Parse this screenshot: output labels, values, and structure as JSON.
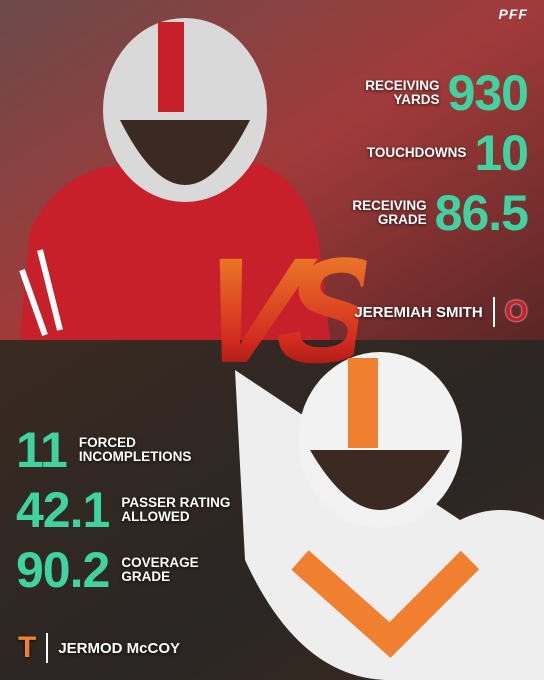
{
  "brand": "PFF",
  "top": {
    "stats": [
      {
        "value": "930",
        "label": [
          "RECEIVING",
          "YARDS"
        ]
      },
      {
        "value": "10",
        "label": [
          "TOUCHDOWNS"
        ]
      },
      {
        "value": "86.5",
        "label": [
          "RECEIVING",
          "GRADE"
        ]
      }
    ],
    "player": "JEREMIAH SMITH",
    "logo": "O"
  },
  "vs": "VS",
  "bottom": {
    "stats": [
      {
        "value": "11",
        "label": [
          "FORCED",
          "INCOMPLETIONS"
        ]
      },
      {
        "value": "42.1",
        "label": [
          "PASSER RATING",
          "ALLOWED"
        ]
      },
      {
        "value": "90.2",
        "label": [
          "COVERAGE",
          "GRADE"
        ]
      }
    ],
    "player": "JERMOD McCOY",
    "logo": "T"
  }
}
